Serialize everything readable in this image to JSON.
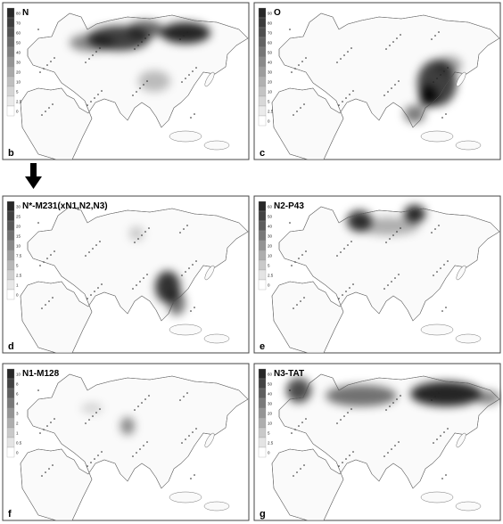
{
  "panels": [
    {
      "letter": "b",
      "title": "N",
      "legend": [
        "80",
        "70",
        "60",
        "50",
        "40",
        "30",
        "20",
        "10",
        "5",
        "2.5",
        "0"
      ]
    },
    {
      "letter": "c",
      "title": "O",
      "legend": [
        "90",
        "80",
        "70",
        "60",
        "50",
        "40",
        "30",
        "20",
        "10",
        "5",
        "2.5",
        "0"
      ]
    },
    {
      "letter": "d",
      "title": "N*-M231(xN1,N2,N3)",
      "legend": [
        "30",
        "25",
        "20",
        "15",
        "10",
        "7.5",
        "5",
        "2.5",
        "1",
        "0"
      ]
    },
    {
      "letter": "e",
      "title": "N2-P43",
      "legend": [
        "60",
        "50",
        "40",
        "30",
        "20",
        "10",
        "5",
        "2.5",
        "0"
      ]
    },
    {
      "letter": "f",
      "title": "N1-M128",
      "legend": [
        "10",
        "8",
        "6",
        "4",
        "3",
        "2",
        "1",
        "0.5",
        "0"
      ]
    },
    {
      "letter": "g",
      "title": "N3-TAT",
      "legend": [
        "60",
        "50",
        "40",
        "30",
        "20",
        "10",
        "5",
        "2.5",
        "0"
      ]
    }
  ]
}
